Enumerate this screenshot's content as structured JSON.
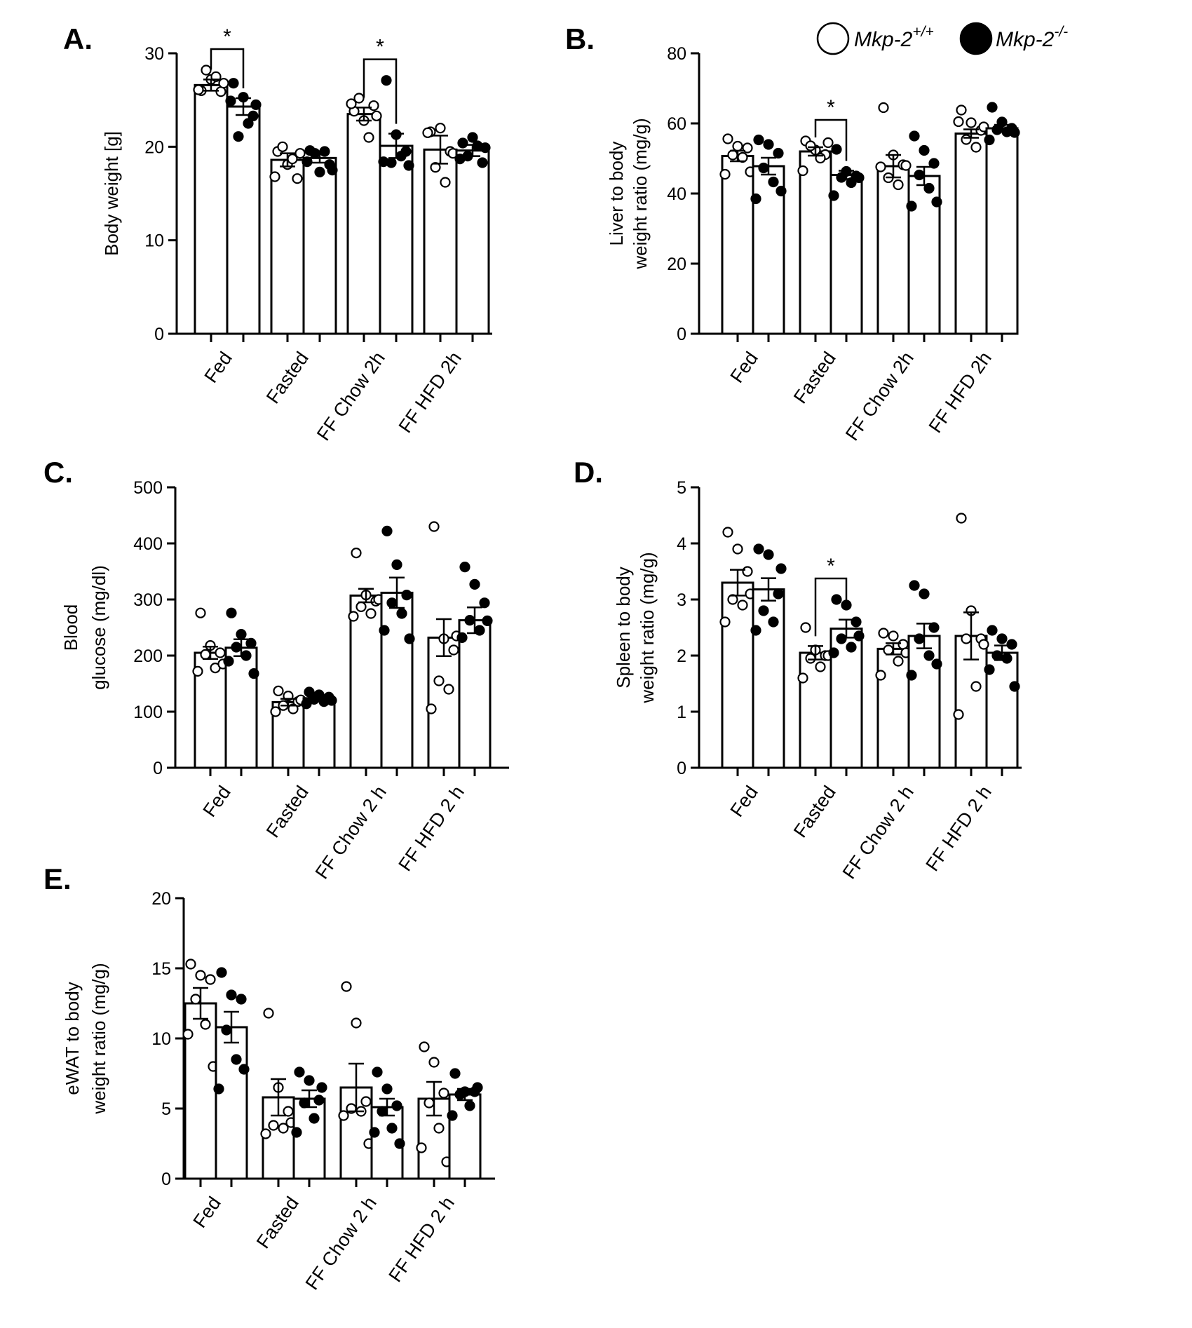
{
  "legend": {
    "wt": {
      "base": "Mkp-2",
      "sup": "+/+"
    },
    "ko": {
      "base": "Mkp-2",
      "sup": "-/-"
    }
  },
  "chart_data": [
    {
      "panel": "A.",
      "type": "bar",
      "ylabel": [
        "Body weight [g]"
      ],
      "ylim": [
        0,
        30
      ],
      "yticks": [
        "0",
        "10",
        "20",
        "30"
      ],
      "categories": [
        "Fed",
        "Fasted",
        "FF Chow 2h",
        "FF HFD 2h"
      ],
      "series": [
        {
          "name": "Mkp-2+/+",
          "means": [
            26.6,
            18.6,
            23.5,
            19.7
          ],
          "sem": [
            0.6,
            0.7,
            0.7,
            1.5
          ],
          "points": [
            [
              26.0,
              27.2,
              25.9,
              28.2,
              27.5,
              26.1,
              26.8
            ],
            [
              19.5,
              18.1,
              16.6,
              20.0,
              18.7,
              16.8,
              19.3
            ],
            [
              23.8,
              22.8,
              24.4,
              25.2,
              21.0,
              24.6,
              23.3
            ],
            [
              21.6,
              22.0,
              19.5,
              17.8,
              16.2,
              21.5,
              19.3
            ]
          ]
        },
        {
          "name": "Mkp-2-/-",
          "means": [
            24.3,
            18.8,
            20.1,
            19.6
          ],
          "sem": [
            0.9,
            0.5,
            1.3,
            0.6
          ],
          "points": [
            [
              26.8,
              25.3,
              23.3,
              21.1,
              22.5,
              24.9,
              24.5
            ],
            [
              19.6,
              17.3,
              18.1,
              19.3,
              19.5,
              18.4,
              17.5
            ],
            [
              27.1,
              21.3,
              19.5,
              18.3,
              19.0,
              18.4,
              18.0
            ],
            [
              20.4,
              21.0,
              18.3,
              19.0,
              20.1,
              18.7,
              19.9
            ]
          ]
        }
      ],
      "significance": [
        {
          "category": "Fed",
          "label": "*"
        },
        {
          "category": "FF Chow 2h",
          "label": "*"
        }
      ]
    },
    {
      "panel": "B.",
      "type": "bar",
      "ylabel": [
        "Liver to body",
        "weight ratio (mg/g)"
      ],
      "ylim": [
        0,
        80
      ],
      "yticks": [
        "0",
        "20",
        "40",
        "60",
        "80"
      ],
      "categories": [
        "Fed",
        "Fasted",
        "FF Chow 2h",
        "FF HFD 2h"
      ],
      "series": [
        {
          "name": "Mkp-2+/+",
          "means": [
            50.7,
            52.0,
            47.8,
            57.1
          ],
          "sem": [
            1.5,
            1.2,
            3.2,
            1.2
          ],
          "points": [
            [
              55.6,
              53.5,
              53.0,
              51.0,
              50.3,
              45.5,
              46.2
            ],
            [
              55.0,
              52.4,
              51.1,
              53.6,
              50.1,
              46.5,
              54.5
            ],
            [
              64.5,
              51.0,
              48.2,
              44.5,
              42.5,
              47.6,
              48.0
            ],
            [
              63.8,
              60.2,
              58.0,
              55.4,
              53.2,
              60.5,
              59.0
            ]
          ]
        },
        {
          "name": "Mkp-2-/-",
          "means": [
            47.8,
            45.3,
            45.0,
            58.6
          ],
          "sem": [
            2.4,
            1.2,
            2.6,
            1.0
          ],
          "points": [
            [
              55.3,
              54.0,
              51.5,
              47.3,
              43.3,
              38.5,
              40.7
            ],
            [
              52.6,
              46.3,
              45.0,
              44.6,
              43.1,
              39.4,
              44.5
            ],
            [
              56.4,
              52.3,
              48.6,
              45.3,
              41.5,
              36.4,
              37.6
            ],
            [
              64.6,
              60.4,
              58.6,
              58.2,
              57.6,
              55.3,
              57.4
            ]
          ]
        }
      ],
      "significance": [
        {
          "category": "Fasted",
          "label": "*"
        }
      ]
    },
    {
      "panel": "C.",
      "type": "bar",
      "ylabel": [
        "Blood",
        "glucose (mg/dl)"
      ],
      "ylim": [
        0,
        500
      ],
      "yticks": [
        "0",
        "100",
        "200",
        "300",
        "400",
        "500"
      ],
      "categories": [
        "Fed",
        "Fasted",
        "FF Chow 2 h",
        "FF HFD 2 h"
      ],
      "series": [
        {
          "name": "Mkp-2+/+",
          "means": [
            205,
            117,
            307,
            232
          ],
          "sem": [
            11,
            6,
            12,
            33
          ],
          "points": [
            [
              276,
              218,
              205,
              202,
              178,
              172,
              185
            ],
            [
              137,
              128,
              118,
              111,
              105,
              100,
              121
            ],
            [
              383,
              308,
              297,
              287,
              275,
              270,
              300
            ],
            [
              430,
              230,
              210,
              155,
              140,
              105,
              235
            ]
          ]
        },
        {
          "name": "Mkp-2-/-",
          "means": [
            214,
            124,
            312,
            263
          ],
          "sem": [
            15,
            5,
            27,
            23
          ],
          "points": [
            [
              276,
              238,
              222,
              215,
              200,
              190,
              168
            ],
            [
              135,
              130,
              126,
              122,
              118,
              114,
              120
            ],
            [
              422,
              362,
              308,
              294,
              275,
              245,
              230
            ],
            [
              358,
              327,
              294,
              263,
              245,
              232,
              262
            ]
          ]
        }
      ],
      "significance": []
    },
    {
      "panel": "D.",
      "type": "bar",
      "ylabel": [
        "Spleen to body",
        "weight ratio (mg/g)"
      ],
      "ylim": [
        0,
        5
      ],
      "yticks": [
        "0",
        "1",
        "2",
        "3",
        "4",
        "5"
      ],
      "categories": [
        "Fed",
        "Fasted",
        "FF Chow 2 h",
        "FF HFD 2 h"
      ],
      "series": [
        {
          "name": "Mkp-2+/+",
          "means": [
            3.3,
            2.05,
            2.12,
            2.35
          ],
          "sem": [
            0.23,
            0.12,
            0.1,
            0.42
          ],
          "points": [
            [
              4.2,
              3.9,
              3.5,
              3.0,
              2.9,
              2.6,
              3.1
            ],
            [
              2.5,
              2.1,
              2.0,
              1.95,
              1.8,
              1.6,
              2.0
            ],
            [
              2.4,
              2.35,
              2.2,
              2.1,
              1.9,
              1.65,
              2.05
            ],
            [
              4.45,
              2.8,
              2.3,
              2.3,
              1.45,
              0.95,
              2.2
            ]
          ]
        },
        {
          "name": "Mkp-2-/-",
          "means": [
            3.18,
            2.48,
            2.35,
            2.05
          ],
          "sem": [
            0.2,
            0.16,
            0.22,
            0.13
          ],
          "points": [
            [
              3.9,
              3.8,
              3.1,
              2.8,
              2.6,
              2.45,
              3.55
            ],
            [
              3.0,
              2.9,
              2.6,
              2.3,
              2.15,
              2.05,
              2.35
            ],
            [
              3.25,
              3.1,
              2.5,
              2.3,
              2.0,
              1.65,
              1.85
            ],
            [
              2.45,
              2.3,
              2.2,
              2.0,
              1.95,
              1.75,
              1.45
            ]
          ]
        }
      ],
      "significance": [
        {
          "category": "Fasted",
          "label": "*"
        }
      ]
    },
    {
      "panel": "E.",
      "type": "bar",
      "ylabel": [
        "eWAT to body",
        "weight ratio (mg/g)"
      ],
      "ylim": [
        0,
        20
      ],
      "yticks": [
        "0",
        "5",
        "10",
        "15",
        "20"
      ],
      "categories": [
        "Fed",
        "Fasted",
        "FF Chow 2 h",
        "FF HFD 2 h"
      ],
      "series": [
        {
          "name": "Mkp-2+/+",
          "means": [
            12.5,
            5.8,
            6.5,
            5.7
          ],
          "sem": [
            1.1,
            1.3,
            1.7,
            1.2
          ],
          "points": [
            [
              15.3,
              14.5,
              14.2,
              12.8,
              11.0,
              10.3,
              8.0
            ],
            [
              11.8,
              6.5,
              4.8,
              3.8,
              3.6,
              3.2,
              4.0
            ],
            [
              13.7,
              11.1,
              5.5,
              5.0,
              4.8,
              4.5,
              2.5
            ],
            [
              9.4,
              8.3,
              6.1,
              5.4,
              3.6,
              2.2,
              1.2
            ]
          ]
        },
        {
          "name": "Mkp-2-/-",
          "means": [
            10.8,
            5.7,
            5.1,
            6.0
          ],
          "sem": [
            1.1,
            0.6,
            0.6,
            0.4
          ],
          "points": [
            [
              14.7,
              13.1,
              12.8,
              10.6,
              8.5,
              6.4,
              7.8
            ],
            [
              7.6,
              7.0,
              5.6,
              5.4,
              4.3,
              3.3,
              6.5
            ],
            [
              7.6,
              6.4,
              5.2,
              4.8,
              3.6,
              3.3,
              2.5
            ],
            [
              7.5,
              6.2,
              6.2,
              6.0,
              5.2,
              4.5,
              6.5
            ]
          ]
        }
      ],
      "significance": []
    }
  ]
}
